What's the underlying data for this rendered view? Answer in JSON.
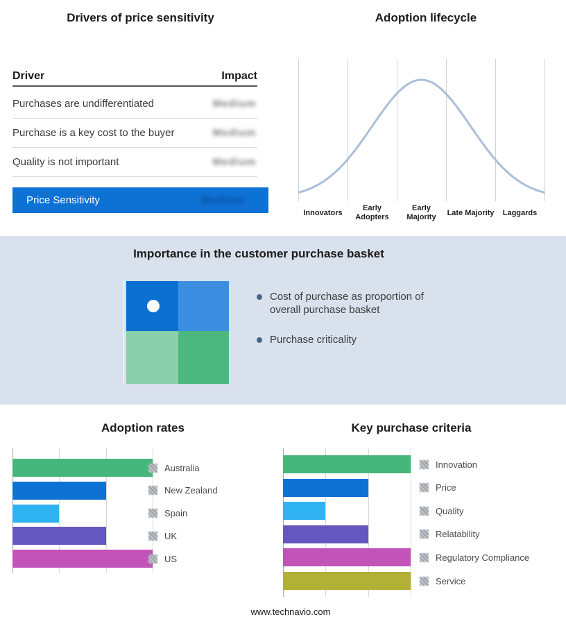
{
  "colors": {
    "accent_blue": "#0e72d4",
    "band_bg": "#d9e1ec",
    "quad_tl": "#0c70d2",
    "quad_tr": "#3d8ee0",
    "quad_bl": "#8ad0ac",
    "quad_br": "#4cb87f",
    "bullet_marker": "#4a6486"
  },
  "drivers": {
    "title": "Drivers of price sensitivity",
    "col_driver": "Driver",
    "col_impact": "Impact",
    "rows": [
      {
        "driver": "Purchases are undifferentiated",
        "impact": "Medium"
      },
      {
        "driver": "Purchase is a key cost to the buyer",
        "impact": "Medium"
      },
      {
        "driver": "Quality is not important",
        "impact": "Medium"
      }
    ],
    "summary_label": "Price Sensitivity",
    "summary_impact": "Medium"
  },
  "basket": {
    "title": "Importance in the customer purchase basket",
    "bullets": [
      "Cost of purchase as proportion of overall purchase basket",
      "Purchase criticality"
    ]
  },
  "footer": {
    "url": "www.technavio.com"
  },
  "chart_data": [
    {
      "type": "line",
      "subtype": "bell-curve",
      "title": "Adoption lifecycle",
      "x_categories": [
        "Innovators",
        "Early Adopters",
        "Early Majority",
        "Late Majority",
        "Laggards"
      ],
      "curve": {
        "shape": "gaussian",
        "peak_category": "Early Majority",
        "sigma": 0.2
      },
      "line_color": "#aabfd8",
      "grid": true,
      "legend_position": "none"
    },
    {
      "type": "bar",
      "orientation": "horizontal",
      "title": "Adoption rates",
      "categories": [
        "Australia",
        "New Zealand",
        "Spain",
        "UK",
        "US"
      ],
      "values": [
        3,
        2,
        1,
        2,
        3
      ],
      "xlim": [
        0,
        3
      ],
      "colors": [
        "#47b67c",
        "#0e72d4",
        "#2fb3f0",
        "#6457bf",
        "#c253b8"
      ],
      "grid": true,
      "legend_position": "right",
      "legend_swatch_style": "redacted-hatch"
    },
    {
      "type": "bar",
      "orientation": "horizontal",
      "title": "Key purchase criteria",
      "categories": [
        "Innovation",
        "Price",
        "Quality",
        "Relatability",
        "Regulatory Compliance",
        "Service"
      ],
      "values": [
        3,
        2,
        1,
        2,
        3,
        3
      ],
      "xlim": [
        0,
        3
      ],
      "colors": [
        "#47b67c",
        "#0e72d4",
        "#2fb3f0",
        "#6457bf",
        "#c253b8",
        "#b1b135"
      ],
      "grid": true,
      "legend_position": "right",
      "legend_swatch_style": "redacted-hatch"
    }
  ]
}
